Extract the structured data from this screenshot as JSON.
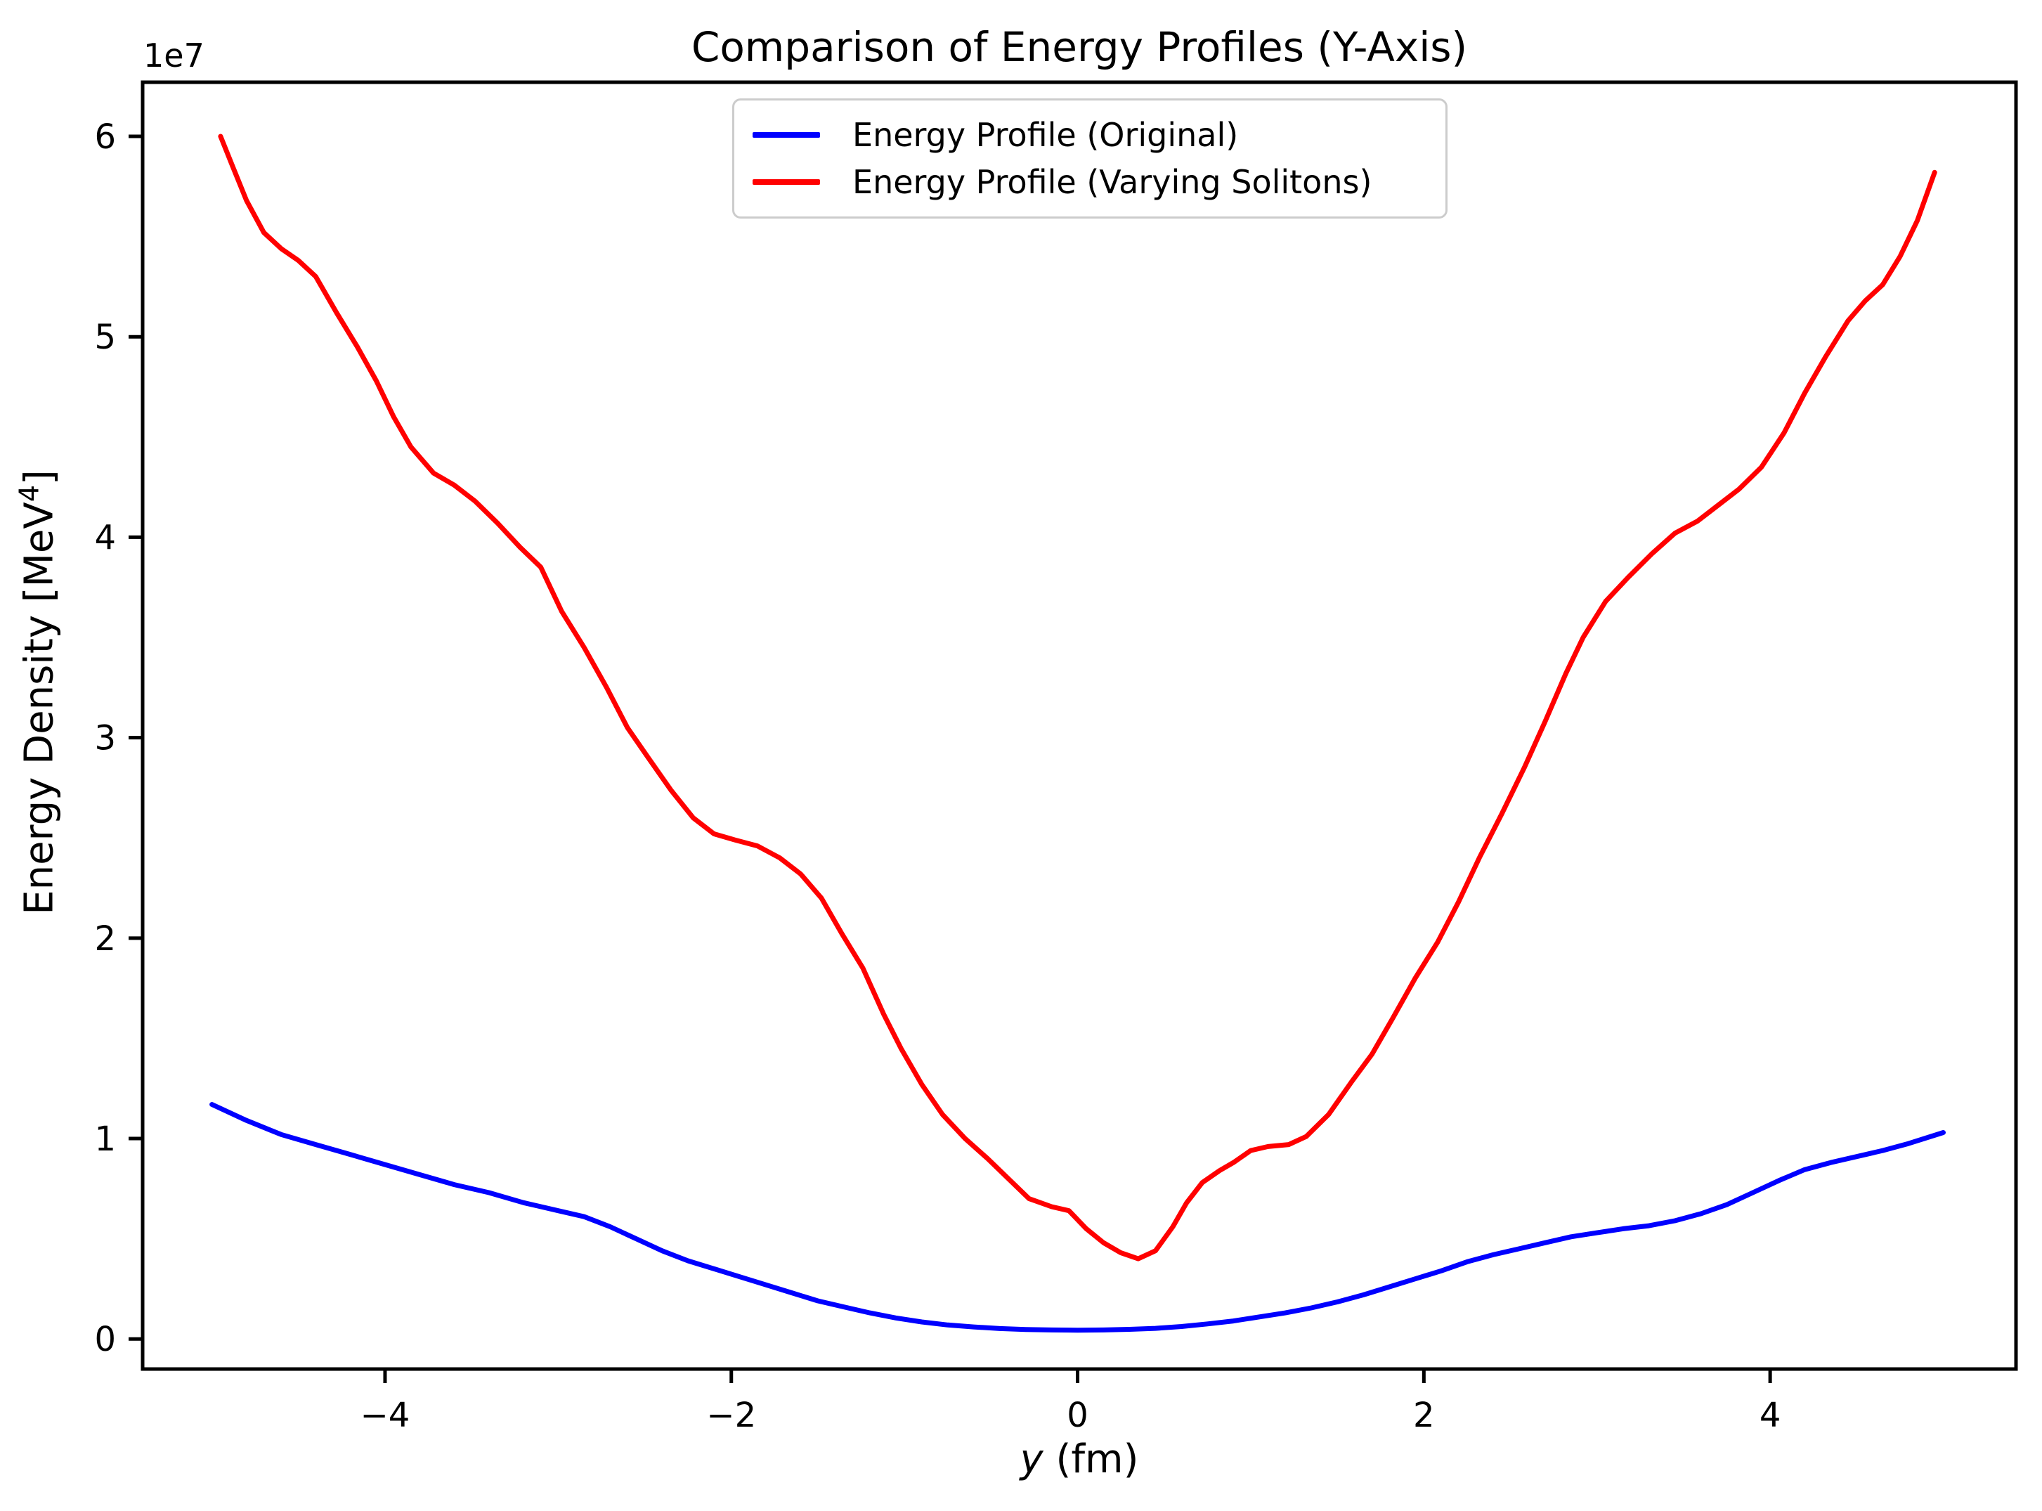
{
  "labels": {
    "xlabel_var": "y",
    "xlabel_unit": " (fm)",
    "ylabel_base": "Energy Density [MeV",
    "ylabel_sup": "4",
    "ylabel_close": "]",
    "offset": "1e7"
  },
  "chart_data": {
    "type": "line",
    "title": "Comparison of Energy Profiles (Y-Axis)",
    "xlabel": "y (fm)",
    "ylabel": "Energy Density [MeV^4]",
    "y_offset_label": "1e7",
    "y_unit_factor": 10000000,
    "grid": false,
    "xlim": [
      -5.4,
      5.42
    ],
    "ylim": [
      -0.15,
      6.27
    ],
    "x_axis": {
      "ticks": [
        {
          "v": -4,
          "label": "−4"
        },
        {
          "v": -2,
          "label": "−2"
        },
        {
          "v": 0,
          "label": "0"
        },
        {
          "v": 2,
          "label": "2"
        },
        {
          "v": 4,
          "label": "4"
        }
      ]
    },
    "y_axis": {
      "ticks": [
        {
          "v": 0,
          "label": "0"
        },
        {
          "v": 1,
          "label": "1"
        },
        {
          "v": 2,
          "label": "2"
        },
        {
          "v": 3,
          "label": "3"
        },
        {
          "v": 4,
          "label": "4"
        },
        {
          "v": 5,
          "label": "5"
        },
        {
          "v": 6,
          "label": "6"
        }
      ]
    },
    "legend": {
      "position": "upper center",
      "entries": [
        {
          "label": "Energy Profile (Original)",
          "color": "#0000FF"
        },
        {
          "label": "Energy Profile (Varying Solitons)",
          "color": "#FF0000"
        }
      ]
    },
    "series": [
      {
        "name": "Energy Profile (Original)",
        "color": "#0000FF",
        "x": [
          -5.0,
          -4.8,
          -4.6,
          -4.4,
          -4.2,
          -4.0,
          -3.8,
          -3.6,
          -3.4,
          -3.2,
          -3.0,
          -2.85,
          -2.7,
          -2.55,
          -2.4,
          -2.25,
          -2.1,
          -1.95,
          -1.8,
          -1.65,
          -1.5,
          -1.35,
          -1.2,
          -1.05,
          -0.9,
          -0.75,
          -0.6,
          -0.45,
          -0.3,
          -0.15,
          0.0,
          0.15,
          0.3,
          0.45,
          0.6,
          0.75,
          0.9,
          1.05,
          1.2,
          1.35,
          1.5,
          1.65,
          1.8,
          1.95,
          2.1,
          2.25,
          2.4,
          2.55,
          2.7,
          2.85,
          3.0,
          3.15,
          3.3,
          3.45,
          3.6,
          3.75,
          3.9,
          4.05,
          4.2,
          4.35,
          4.5,
          4.65,
          4.8,
          5.0
        ],
        "y": [
          1.17,
          1.09,
          1.02,
          0.97,
          0.92,
          0.87,
          0.82,
          0.77,
          0.73,
          0.68,
          0.64,
          0.61,
          0.56,
          0.5,
          0.44,
          0.39,
          0.35,
          0.31,
          0.27,
          0.23,
          0.19,
          0.16,
          0.13,
          0.105,
          0.085,
          0.07,
          0.06,
          0.052,
          0.047,
          0.045,
          0.044,
          0.045,
          0.048,
          0.053,
          0.062,
          0.075,
          0.09,
          0.11,
          0.13,
          0.155,
          0.185,
          0.22,
          0.26,
          0.3,
          0.34,
          0.385,
          0.42,
          0.45,
          0.48,
          0.51,
          0.53,
          0.55,
          0.565,
          0.59,
          0.625,
          0.67,
          0.73,
          0.79,
          0.845,
          0.88,
          0.91,
          0.94,
          0.975,
          1.03
        ]
      },
      {
        "name": "Energy Profile (Varying Solitons)",
        "color": "#FF0000",
        "x": [
          -4.95,
          -4.88,
          -4.8,
          -4.7,
          -4.6,
          -4.5,
          -4.4,
          -4.28,
          -4.16,
          -4.05,
          -3.95,
          -3.85,
          -3.72,
          -3.6,
          -3.48,
          -3.35,
          -3.22,
          -3.1,
          -2.98,
          -2.85,
          -2.72,
          -2.6,
          -2.48,
          -2.35,
          -2.22,
          -2.1,
          -1.98,
          -1.85,
          -1.72,
          -1.6,
          -1.48,
          -1.36,
          -1.24,
          -1.12,
          -1.02,
          -0.9,
          -0.78,
          -0.65,
          -0.52,
          -0.4,
          -0.28,
          -0.15,
          -0.05,
          0.05,
          0.15,
          0.25,
          0.35,
          0.45,
          0.55,
          0.63,
          0.72,
          0.82,
          0.9,
          1.0,
          1.1,
          1.22,
          1.32,
          1.45,
          1.58,
          1.7,
          1.82,
          1.95,
          2.08,
          2.2,
          2.32,
          2.45,
          2.58,
          2.7,
          2.82,
          2.92,
          3.05,
          3.18,
          3.32,
          3.45,
          3.58,
          3.7,
          3.82,
          3.95,
          4.08,
          4.2,
          4.32,
          4.45,
          4.55,
          4.65,
          4.75,
          4.85,
          4.95
        ],
        "y": [
          6.0,
          5.85,
          5.68,
          5.52,
          5.44,
          5.38,
          5.3,
          5.12,
          4.95,
          4.78,
          4.6,
          4.45,
          4.32,
          4.26,
          4.18,
          4.07,
          3.95,
          3.85,
          3.63,
          3.45,
          3.25,
          3.05,
          2.9,
          2.74,
          2.6,
          2.52,
          2.49,
          2.46,
          2.4,
          2.32,
          2.2,
          2.02,
          1.85,
          1.62,
          1.45,
          1.27,
          1.12,
          1.0,
          0.9,
          0.8,
          0.7,
          0.66,
          0.64,
          0.55,
          0.48,
          0.43,
          0.4,
          0.44,
          0.56,
          0.68,
          0.78,
          0.84,
          0.88,
          0.94,
          0.96,
          0.97,
          1.01,
          1.12,
          1.28,
          1.42,
          1.6,
          1.8,
          1.98,
          2.18,
          2.4,
          2.62,
          2.85,
          3.08,
          3.32,
          3.5,
          3.68,
          3.8,
          3.92,
          4.02,
          4.08,
          4.16,
          4.24,
          4.35,
          4.52,
          4.72,
          4.9,
          5.08,
          5.18,
          5.26,
          5.4,
          5.58,
          5.82
        ]
      }
    ]
  }
}
